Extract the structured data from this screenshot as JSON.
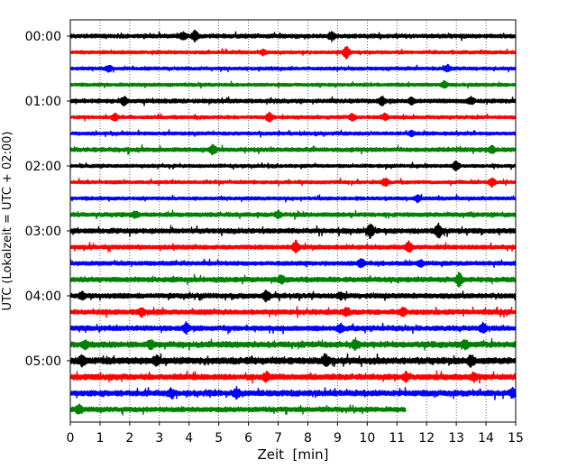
{
  "chart_data": {
    "type": "line",
    "subtype": "helicorder-seismogram",
    "xlabel": "Zeit  [min]",
    "ylabel": "UTC (Lokalzeit = UTC + 02:00)",
    "xlim": [
      0,
      15
    ],
    "xticks": [
      "0",
      "1",
      "2",
      "3",
      "4",
      "5",
      "6",
      "7",
      "8",
      "9",
      "10",
      "11",
      "12",
      "13",
      "14",
      "15"
    ],
    "x_grid": "dotted vertical lines at every minute",
    "minutes_per_line": 15,
    "y_tick_labels": [
      "00:00",
      "01:00",
      "02:00",
      "03:00",
      "04:00",
      "05:00"
    ],
    "colors": [
      "#000000",
      "#ff0000",
      "#0000ff",
      "#008000"
    ],
    "color_cycle": "black, red, blue, green (repeating per line)",
    "traces": [
      {
        "start_utc": "00:00",
        "color": "#000000",
        "amp": 2.5,
        "events": [
          [
            3.8,
            5
          ],
          [
            4.2,
            6
          ],
          [
            8.8,
            5
          ]
        ],
        "end_min": 15
      },
      {
        "start_utc": "00:15",
        "color": "#ff0000",
        "amp": 2.0,
        "events": [
          [
            6.5,
            3
          ],
          [
            9.3,
            7
          ]
        ],
        "end_min": 15
      },
      {
        "start_utc": "00:30",
        "color": "#0000ff",
        "amp": 2.0,
        "events": [
          [
            1.3,
            4
          ],
          [
            12.7,
            4
          ]
        ],
        "end_min": 15
      },
      {
        "start_utc": "00:45",
        "color": "#008000",
        "amp": 2.0,
        "events": [
          [
            12.6,
            4
          ]
        ],
        "end_min": 15
      },
      {
        "start_utc": "01:00",
        "color": "#000000",
        "amp": 2.5,
        "events": [
          [
            1.8,
            5
          ],
          [
            10.5,
            5
          ],
          [
            11.5,
            4
          ],
          [
            13.5,
            4
          ]
        ],
        "end_min": 15
      },
      {
        "start_utc": "01:15",
        "color": "#ff0000",
        "amp": 2.0,
        "events": [
          [
            1.5,
            4
          ],
          [
            6.7,
            5
          ],
          [
            9.5,
            4
          ],
          [
            10.6,
            4
          ]
        ],
        "end_min": 15
      },
      {
        "start_utc": "01:30",
        "color": "#0000ff",
        "amp": 2.0,
        "events": [
          [
            11.5,
            3
          ]
        ],
        "end_min": 15
      },
      {
        "start_utc": "01:45",
        "color": "#008000",
        "amp": 2.5,
        "events": [
          [
            4.8,
            6
          ],
          [
            14.2,
            4
          ]
        ],
        "end_min": 15
      },
      {
        "start_utc": "02:00",
        "color": "#000000",
        "amp": 2.0,
        "events": [
          [
            13.0,
            6
          ]
        ],
        "end_min": 15
      },
      {
        "start_utc": "02:15",
        "color": "#ff0000",
        "amp": 2.0,
        "events": [
          [
            10.6,
            5
          ],
          [
            14.2,
            5
          ]
        ],
        "end_min": 15
      },
      {
        "start_utc": "02:30",
        "color": "#0000ff",
        "amp": 2.0,
        "events": [
          [
            11.7,
            4
          ]
        ],
        "end_min": 15
      },
      {
        "start_utc": "02:45",
        "color": "#008000",
        "amp": 2.5,
        "events": [
          [
            2.2,
            4
          ],
          [
            7.0,
            4
          ]
        ],
        "end_min": 15
      },
      {
        "start_utc": "03:00",
        "color": "#000000",
        "amp": 3.0,
        "events": [
          [
            10.1,
            8
          ],
          [
            12.4,
            8
          ]
        ],
        "end_min": 15
      },
      {
        "start_utc": "03:15",
        "color": "#ff0000",
        "amp": 2.5,
        "events": [
          [
            7.6,
            7
          ],
          [
            11.4,
            6
          ]
        ],
        "end_min": 15
      },
      {
        "start_utc": "03:30",
        "color": "#0000ff",
        "amp": 2.5,
        "events": [
          [
            9.8,
            5
          ],
          [
            11.8,
            4
          ]
        ],
        "end_min": 15
      },
      {
        "start_utc": "03:45",
        "color": "#008000",
        "amp": 3.0,
        "events": [
          [
            7.1,
            5
          ],
          [
            13.1,
            8
          ]
        ],
        "end_min": 15
      },
      {
        "start_utc": "04:00",
        "color": "#000000",
        "amp": 3.0,
        "events": [
          [
            0.4,
            5
          ],
          [
            6.6,
            6
          ],
          [
            9.1,
            4
          ]
        ],
        "end_min": 15
      },
      {
        "start_utc": "04:15",
        "color": "#ff0000",
        "amp": 3.0,
        "events": [
          [
            2.4,
            5
          ],
          [
            9.3,
            5
          ],
          [
            11.2,
            5
          ]
        ],
        "end_min": 15
      },
      {
        "start_utc": "04:30",
        "color": "#0000ff",
        "amp": 3.0,
        "events": [
          [
            3.9,
            6
          ],
          [
            9.1,
            5
          ],
          [
            13.9,
            6
          ]
        ],
        "end_min": 15
      },
      {
        "start_utc": "04:45",
        "color": "#008000",
        "amp": 3.5,
        "events": [
          [
            0.5,
            5
          ],
          [
            2.7,
            5
          ],
          [
            9.6,
            6
          ],
          [
            13.3,
            5
          ]
        ],
        "end_min": 15
      },
      {
        "start_utc": "05:00",
        "color": "#000000",
        "amp": 4.0,
        "events": [
          [
            0.4,
            6
          ],
          [
            2.9,
            6
          ],
          [
            8.6,
            7
          ],
          [
            13.5,
            6
          ]
        ],
        "end_min": 15
      },
      {
        "start_utc": "05:15",
        "color": "#ff0000",
        "amp": 3.5,
        "events": [
          [
            6.6,
            5
          ],
          [
            11.3,
            5
          ],
          [
            13.6,
            5
          ]
        ],
        "end_min": 15
      },
      {
        "start_utc": "05:30",
        "color": "#0000ff",
        "amp": 3.5,
        "events": [
          [
            3.4,
            5
          ],
          [
            5.6,
            6
          ],
          [
            14.9,
            5
          ]
        ],
        "end_min": 15
      },
      {
        "start_utc": "05:45",
        "color": "#008000",
        "amp": 3.0,
        "events": [
          [
            0.3,
            6
          ]
        ],
        "end_min": 11.3
      }
    ]
  }
}
